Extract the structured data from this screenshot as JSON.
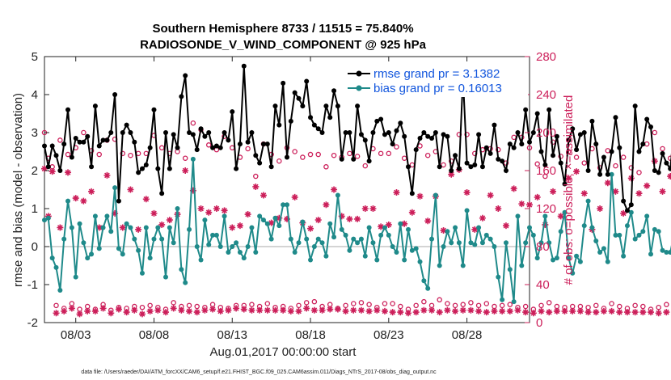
{
  "chart_data": {
    "type": "line",
    "title": "Southern Hemisphere 8733 / 11515 = 75.840%",
    "subtitle": "RADIOSONDE_V_WIND_COMPONENT @ 925 hPa",
    "xlabel": "Aug.01,2017 00:00:00 start",
    "ylabel": "rmse and bias (model - observation)",
    "ylabel_right": "# of obs: o=possible; ×=assimilated",
    "x_start_day": 1,
    "x_end_day": 32,
    "x_ticks": [
      {
        "day": 3,
        "label": "08/03"
      },
      {
        "day": 8,
        "label": "08/08"
      },
      {
        "day": 13,
        "label": "08/13"
      },
      {
        "day": 18,
        "label": "08/18"
      },
      {
        "day": 23,
        "label": "08/23"
      },
      {
        "day": 28,
        "label": "08/28"
      }
    ],
    "ylim": [
      -2,
      5
    ],
    "yticks": [
      -2,
      -1,
      0,
      1,
      2,
      3,
      4,
      5
    ],
    "ylim_right": [
      0,
      280
    ],
    "yticks_right": [
      0,
      40,
      80,
      120,
      160,
      200,
      240,
      280
    ],
    "zero_line": 0,
    "grid": false,
    "legend_position": "top-right",
    "sample_interval_days": 0.25,
    "series": [
      {
        "name": "rmse grand pr = 3.1382",
        "axis": "left",
        "color": "#000000",
        "marker": "filled-circle",
        "values": [
          2.65,
          2.1,
          2.65,
          2.4,
          2.0,
          2.7,
          3.6,
          2.35,
          2.85,
          2.75,
          2.75,
          2.9,
          2.1,
          3.7,
          2.65,
          2.8,
          2.8,
          3.0,
          4.0,
          1.2,
          3.0,
          3.2,
          3.0,
          2.75,
          1.95,
          2.05,
          2.15,
          2.6,
          3.6,
          2.05,
          1.4,
          3.0,
          2.05,
          2.95,
          2.6,
          3.95,
          4.5,
          3.0,
          2.95,
          2.55,
          3.1,
          2.9,
          3.0,
          2.6,
          2.65,
          2.6,
          3.0,
          2.8,
          3.55,
          2.05,
          2.7,
          4.75,
          2.75,
          3.0,
          2.4,
          2.2,
          2.7,
          2.7,
          2.1,
          3.7,
          3.2,
          4.3,
          2.35,
          3.3,
          4.05,
          3.9,
          3.7,
          4.35,
          3.4,
          3.2,
          3.1,
          3.0,
          3.7,
          3.4,
          4.1,
          3.7,
          2.3,
          3.0,
          3.0,
          2.3,
          3.7,
          2.95,
          2.8,
          2.25,
          3.0,
          3.3,
          3.35,
          2.95,
          3.0,
          2.7,
          3.05,
          3.25,
          2.9,
          2.1,
          1.4,
          2.55,
          2.85,
          3.0,
          2.9,
          2.85,
          3.0,
          2.1,
          2.95,
          2.9,
          2.0,
          2.4,
          2.05,
          4.45,
          2.2,
          2.1,
          2.15,
          2.95,
          2.1,
          2.6,
          2.45,
          3.2,
          2.3,
          2.25,
          2.0,
          2.7,
          2.6,
          3.0,
          2.7,
          3.6,
          2.75,
          3.0,
          3.5,
          2.5,
          2.15,
          3.6,
          2.4,
          2.9,
          2.2,
          1.65,
          2.8,
          3.1,
          2.55,
          2.95,
          3.0,
          2.0,
          3.3,
          2.7,
          1.9,
          2.35,
          1.9,
          2.5,
          3.4,
          2.6,
          1.2,
          0.95,
          1.1,
          3.7,
          2.5,
          2.7,
          3.35,
          3.15,
          2.0,
          1.95,
          2.45,
          2.2,
          2.05,
          3.15,
          2.0,
          2.0,
          2.25,
          2.95,
          2.65,
          2.6,
          2.2,
          2.3
        ]
      },
      {
        "name": "bias grand pr = 0.16013",
        "axis": "left",
        "color": "#1f8a8a",
        "marker": "filled-circle",
        "values": [
          0.7,
          0.75,
          -0.3,
          -0.55,
          -1.15,
          0.2,
          1.2,
          0.5,
          -0.8,
          0.6,
          0.1,
          -0.3,
          -0.2,
          0.8,
          -0.05,
          0.5,
          0.8,
          0.4,
          1.55,
          -0.05,
          -0.2,
          0.6,
          0.5,
          0.2,
          -0.1,
          -0.7,
          0.5,
          -0.3,
          0.2,
          0.5,
          0.2,
          -0.8,
          0.5,
          0.1,
          1.0,
          -0.6,
          -0.95,
          0.45,
          2.3,
          0.0,
          -0.35,
          0.7,
          0.05,
          0.3,
          0.3,
          0.0,
          0.8,
          -0.15,
          0.0,
          0.1,
          -0.15,
          -0.3,
          0.0,
          0.5,
          -0.15,
          0.8,
          0.7,
          0.6,
          0.2,
          0.75,
          0.55,
          1.1,
          1.1,
          0.2,
          -0.15,
          0.1,
          0.65,
          0.2,
          -0.35,
          0.0,
          0.2,
          0.1,
          -0.25,
          0.6,
          0.25,
          1.35,
          0.45,
          0.3,
          -0.1,
          0.2,
          0.1,
          0.2,
          -0.25,
          0.5,
          0.1,
          -0.35,
          0.3,
          0.5,
          0.3,
          0.0,
          -0.15,
          0.6,
          -0.35,
          0.45,
          -0.1,
          -0.05,
          -0.4,
          -0.9,
          -1.1,
          0.2,
          1.35,
          -0.5,
          0.0,
          0.4,
          0.1,
          0.5,
          0.1,
          -0.5,
          0.95,
          0.1,
          0.05,
          0.5,
          0.1,
          0.3,
          0.2,
          0.0,
          -0.8,
          -1.4,
          0.1,
          -0.6,
          -1.45,
          0.8,
          -0.5,
          0.1,
          0.5,
          0.3,
          -0.3,
          0.1,
          0.8,
          0.1,
          -0.35,
          -0.3,
          0.4,
          0.9,
          -0.3,
          -0.7,
          -0.25,
          -0.4,
          0.55,
          1.2,
          0.5,
          0.15,
          -0.15,
          -0.05,
          -0.4,
          1.9,
          0.3,
          0.3,
          -0.25,
          0.55,
          0.9,
          0.2,
          0.3,
          0.4,
          0.8,
          -0.2,
          0.45,
          0.4,
          -0.1,
          -0.15,
          -0.15,
          0.35,
          0.4
        ]
      },
      {
        "name": "possible",
        "axis": "right",
        "color": "#cc1f5a",
        "marker": "open-circle",
        "values": [
          200,
          173,
          164,
          18,
          192,
          15,
          177,
          20,
          184,
          14,
          200,
          17,
          181,
          14,
          177,
          19,
          192,
          13,
          193,
          16,
          178,
          15,
          176,
          17,
          178,
          16,
          178,
          18,
          197,
          16,
          184,
          14,
          178,
          21,
          180,
          17,
          173,
          18,
          210,
          17,
          203,
          16,
          187,
          19,
          182,
          16,
          196,
          15,
          184,
          18,
          174,
          18,
          183,
          19,
          154,
          17,
          188,
          20,
          177,
          16,
          170,
          17,
          184,
          15,
          180,
          18,
          174,
          21,
          177,
          22,
          177,
          17,
          164,
          19,
          176,
          15,
          174,
          18,
          178,
          20,
          175,
          21,
          165,
          19,
          183,
          16,
          178,
          20,
          178,
          20,
          185,
          17,
          173,
          14,
          166,
          18,
          186,
          22,
          176,
          18,
          180,
          24,
          166,
          20,
          170,
          18,
          198,
          19,
          198,
          21,
          178,
          18,
          182,
          20,
          183,
          17,
          182,
          18,
          168,
          19,
          195,
          16,
          195,
          17,
          184,
          14,
          167,
          18,
          154,
          21,
          190,
          17,
          175,
          16,
          180,
          17,
          174,
          17,
          168,
          16,
          183,
          18,
          163,
          15,
          181,
          20,
          165,
          17,
          174,
          15,
          163,
          18,
          158,
          17,
          188,
          14,
          200,
          16,
          183,
          19,
          173,
          16,
          169,
          15
        ]
      },
      {
        "name": "assimilated",
        "axis": "right",
        "color": "#cc1f5a",
        "marker": "asterisk",
        "values": [
          162,
          112,
          159,
          10,
          100,
          12,
          158,
          15,
          131,
          9,
          128,
          12,
          138,
          12,
          100,
          15,
          155,
          10,
          115,
          14,
          100,
          11,
          140,
          13,
          98,
          9,
          130,
          12,
          115,
          13,
          103,
          11,
          108,
          15,
          114,
          13,
          160,
          12,
          139,
          11,
          120,
          13,
          116,
          14,
          120,
          12,
          118,
          13,
          100,
          15,
          102,
          14,
          114,
          13,
          143,
          13,
          134,
          13,
          105,
          13,
          110,
          13,
          109,
          12,
          132,
          12,
          105,
          15,
          99,
          13,
          108,
          13,
          124,
          14,
          140,
          14,
          112,
          12,
          109,
          13,
          109,
          13,
          120,
          12,
          120,
          13,
          101,
          12,
          103,
          11,
          137,
          11,
          104,
          10,
          116,
          11,
          133,
          13,
          107,
          13,
          133,
          11,
          97,
          13,
          156,
          12,
          161,
          13,
          137,
          13,
          98,
          12,
          110,
          11,
          134,
          12,
          120,
          12,
          102,
          12,
          141,
          13,
          125,
          11,
          124,
          10,
          132,
          12,
          103,
          11,
          138,
          12,
          112,
          12,
          152,
          12,
          159,
          12,
          136,
          11,
          98,
          11,
          120,
          12,
          147,
          12,
          138,
          11,
          115,
          11,
          152,
          11,
          136,
          11,
          144,
          11,
          170,
          10,
          138,
          11,
          154,
          10,
          132,
          10
        ]
      }
    ],
    "footnote": "data file: /Users/raeder/DAI/ATM_forcXX/CAM6_setup/f.e21.FHIST_BGC.f09_025.CAM6assim.011/Diags_NTrS_2017-08/obs_diag_output.nc"
  }
}
